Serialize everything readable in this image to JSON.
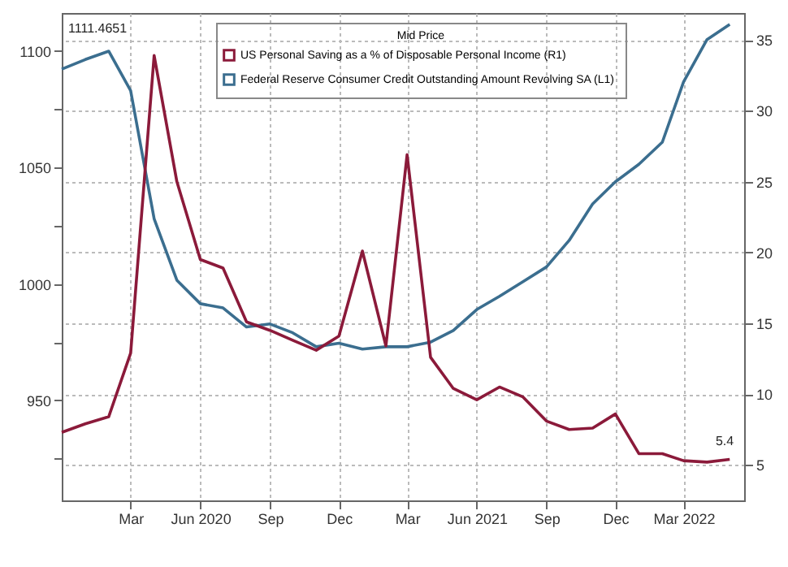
{
  "chart_data": {
    "type": "line",
    "legend_title": "Mid Price",
    "x": [
      "2019-12",
      "2020-01",
      "2020-02",
      "2020-03",
      "2020-04",
      "2020-05",
      "2020-06",
      "2020-07",
      "2020-08",
      "2020-09",
      "2020-10",
      "2020-11",
      "2020-12",
      "2021-01",
      "2021-02",
      "2021-03",
      "2021-04",
      "2021-05",
      "2021-06",
      "2021-07",
      "2021-08",
      "2021-09",
      "2021-10",
      "2021-11",
      "2021-12",
      "2022-01",
      "2022-02",
      "2022-03",
      "2022-04",
      "2022-05"
    ],
    "series": [
      {
        "name": "US Personal Saving as a % of Disposable Personal Income  (R1)",
        "color": "#8b1a3a",
        "axis": "y2",
        "values": [
          7.3,
          7.9,
          8.4,
          12.9,
          33.9,
          25.0,
          19.5,
          18.9,
          15.1,
          14.5,
          13.8,
          13.1,
          14.1,
          20.1,
          13.4,
          26.9,
          12.6,
          10.4,
          9.6,
          10.5,
          9.8,
          8.1,
          7.5,
          7.6,
          8.6,
          5.8,
          5.8,
          5.3,
          5.2,
          5.4
        ]
      },
      {
        "name": "Federal Reserve Consumer Credit Outstanding Amount Revolving SA  (L1)",
        "color": "#3b6e8f",
        "values": [
          1092.3,
          1096.4,
          1100,
          1083,
          1028,
          1001.6,
          991.5,
          989.7,
          981.5,
          982.8,
          979,
          973,
          974.5,
          972,
          973,
          973,
          975,
          980,
          989,
          994.7,
          1001,
          1007.3,
          1018.7,
          1034.4,
          1043.9,
          1051.4,
          1060.9,
          1086.8,
          1105,
          1111.5
        ]
      }
    ],
    "annotations": [
      "5.4",
      "1111.4651"
    ],
    "xlim": [
      "2019-12",
      "2022-05-20"
    ],
    "xticks": [
      {
        "value": "2020-03",
        "label": "Mar"
      },
      {
        "value": "2020-06",
        "label": "Jun\n2020"
      },
      {
        "value": "2020-09",
        "label": "Sep"
      },
      {
        "value": "2020-12",
        "label": "Dec"
      },
      {
        "value": "2021-03",
        "label": "Mar"
      },
      {
        "value": "2021-06",
        "label": "Jun\n2021"
      },
      {
        "value": "2021-09",
        "label": "Sep"
      },
      {
        "value": "2021-12",
        "label": "Dec"
      },
      {
        "value": "2022-03",
        "label": "Mar\n2022"
      }
    ],
    "ylim": [
      907,
      1116.4
    ],
    "yticks": [
      {
        "value": 925,
        "label": null
      },
      950,
      {
        "value": 975,
        "label": null
      },
      1000,
      {
        "value": 1025,
        "label": null
      },
      1050,
      {
        "value": 1075,
        "label": null
      },
      1100
    ],
    "y2lim": [
      2.5,
      36.9
    ],
    "y2ticks": [
      5,
      10,
      15,
      20,
      25,
      30,
      35
    ],
    "grid": true,
    "legend": "top",
    "line_style": "solid"
  }
}
